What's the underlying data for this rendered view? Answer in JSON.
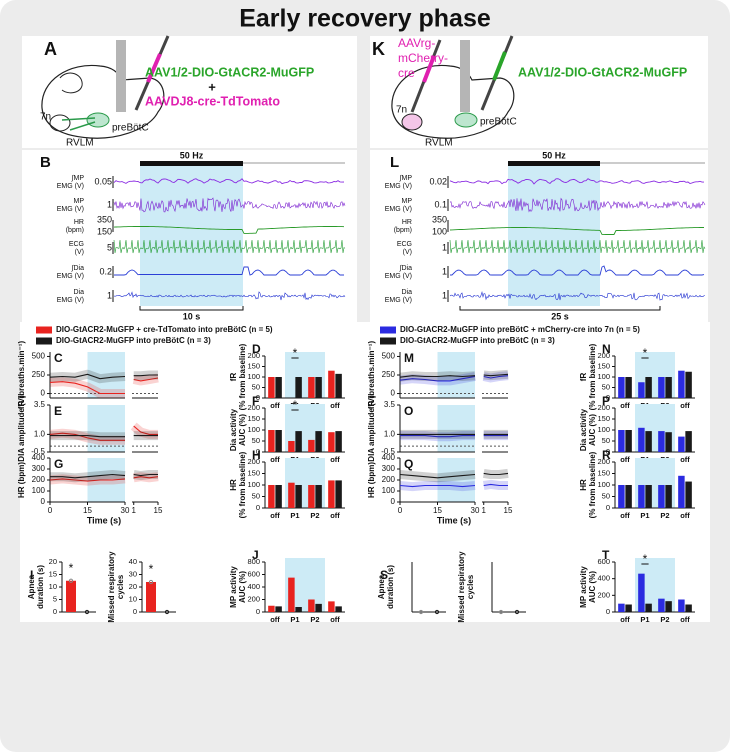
{
  "title": "Early recovery phase",
  "schematics": [
    {
      "letter": "A",
      "virus": "AAV1/2-DIO-GtACR2-MuGFP",
      "plus": "+",
      "virus2": "AAVDJ8-cre-TdTomato",
      "nuclei": [
        "7n",
        "preBötC",
        "RVLM"
      ]
    },
    {
      "letter": "K",
      "retro": [
        "AAVrg-",
        "mCherry-",
        "cre"
      ],
      "virus": "AAV1/2-DIO-GtACR2-MuGFP",
      "nuclei": [
        "7n",
        "preBötC",
        "RVLM"
      ]
    }
  ],
  "recordings": [
    {
      "letter": "B",
      "stim": "50 Hz",
      "scale": "10 s",
      "channels": [
        {
          "label": [
            "∫MP",
            "EMG (V)"
          ],
          "scale": [
            "0.05"
          ]
        },
        {
          "label": [
            "MP",
            "EMG (V)"
          ],
          "scale": [
            "1"
          ]
        },
        {
          "label": [
            "HR",
            "(bpm)"
          ],
          "scale": [
            "350",
            "150"
          ]
        },
        {
          "label": [
            "ECG",
            "(V)"
          ],
          "scale": [
            "5"
          ]
        },
        {
          "label": [
            "∫Dia",
            "EMG (V)"
          ],
          "scale": [
            "0.2"
          ]
        },
        {
          "label": [
            "Dia",
            "EMG (V)"
          ],
          "scale": [
            "1"
          ]
        }
      ]
    },
    {
      "letter": "L",
      "stim": "50 Hz",
      "scale": "25 s",
      "channels": [
        {
          "label": [
            "∫MP",
            "EMG (V)"
          ],
          "scale": [
            "0.02"
          ]
        },
        {
          "label": [
            "MP",
            "EMG (V)"
          ],
          "scale": [
            "0.1"
          ]
        },
        {
          "label": [
            "HR",
            "(bpm)"
          ],
          "scale": [
            "350",
            "100"
          ]
        },
        {
          "label": [
            "ECG",
            "(V)"
          ],
          "scale": [
            "1"
          ]
        },
        {
          "label": [
            "∫Dia",
            "EMG (V)"
          ],
          "scale": [
            "1"
          ]
        },
        {
          "label": [
            "Dia",
            "EMG (V)"
          ],
          "scale": [
            "1"
          ]
        }
      ]
    }
  ],
  "legends": [
    [
      {
        "color": "#e8231f",
        "text": "DIO-GtACR2-MuGFP + cre-TdTomato into preBötC (n = 5)"
      },
      {
        "color": "#1a1a1a",
        "text": "DIO-GtACR2-MuGFP into preBötC  (n = 3)"
      }
    ],
    [
      {
        "color": "#2b2be0",
        "text": "DIO-GtACR2-MuGFP into preBötC + mCherry-cre into 7n (n = 5)"
      },
      {
        "color": "#1a1a1a",
        "text": "DIO-GtACR2-MuGFP into preBötC (n = 3)"
      }
    ]
  ],
  "line_panels": [
    {
      "letter": "C",
      "ylabel": "fR (breaths.min⁻¹)",
      "ylim": [
        -60,
        560
      ],
      "yticks": [
        0,
        250,
        500
      ],
      "xlim": [
        0,
        30
      ],
      "post_xlim": [
        0,
        15
      ],
      "stim": [
        15,
        30
      ],
      "x": [
        0,
        5,
        10,
        15,
        20,
        25,
        30
      ],
      "post_x": [
        1,
        5,
        10,
        15
      ],
      "series": [
        {
          "color": "#e8231f",
          "values": [
            150,
            160,
            140,
            90,
            0,
            0,
            0
          ],
          "post_values": [
            190,
            170,
            190,
            210
          ]
        },
        {
          "color": "#1a1a1a",
          "values": [
            220,
            230,
            220,
            260,
            200,
            220,
            230
          ],
          "post_values": [
            240,
            240,
            250,
            250
          ]
        }
      ]
    },
    {
      "letter": "E",
      "ylabel": "DIA amplitude (V)",
      "ylim": [
        -0.5,
        3.5
      ],
      "yticks": [
        -0.5,
        {
          "value": 1,
          "label": "1.0"
        },
        3.5
      ],
      "xlim": [
        0,
        30
      ],
      "post_xlim": [
        0,
        15
      ],
      "stim": [
        15,
        30
      ],
      "x": [
        0,
        5,
        10,
        15,
        20,
        25,
        30
      ],
      "post_x": [
        1,
        5,
        10,
        15
      ],
      "series": [
        {
          "color": "#e8231f",
          "values": [
            1.0,
            1.1,
            1.0,
            0.7,
            0.5,
            0.5,
            0.5
          ],
          "post_values": [
            1.7,
            1.2,
            1.0,
            1.0
          ]
        },
        {
          "color": "#1a1a1a",
          "values": [
            0.9,
            0.9,
            0.9,
            0.9,
            0.8,
            0.8,
            0.8
          ],
          "post_values": [
            0.9,
            0.9,
            0.9,
            0.9
          ]
        }
      ]
    },
    {
      "letter": "G",
      "ylabel": "HR (bpm)",
      "ylim": [
        0,
        400
      ],
      "yticks": [
        0,
        100,
        200,
        300,
        400
      ],
      "xlim": [
        0,
        30
      ],
      "post_xlim": [
        0,
        15
      ],
      "xticks": [
        0,
        15,
        30
      ],
      "post_xticks": [
        1,
        15
      ],
      "xlabel": "Time (s)",
      "stim": [
        15,
        30
      ],
      "x": [
        0,
        5,
        10,
        15,
        20,
        25,
        30
      ],
      "post_x": [
        1,
        5,
        10,
        15
      ],
      "series": [
        {
          "color": "#e8231f",
          "values": [
            200,
            210,
            200,
            190,
            200,
            200,
            210
          ],
          "post_values": [
            220,
            230,
            220,
            230
          ]
        },
        {
          "color": "#1a1a1a",
          "values": [
            230,
            230,
            220,
            230,
            240,
            250,
            240
          ],
          "post_values": [
            250,
            240,
            250,
            250
          ]
        }
      ]
    },
    {
      "letter": "M",
      "ylabel": "fR (breaths.min⁻¹)",
      "ylim": [
        -60,
        560
      ],
      "yticks": [
        0,
        250,
        500
      ],
      "xlim": [
        0,
        30
      ],
      "post_xlim": [
        0,
        15
      ],
      "stim": [
        15,
        30
      ],
      "x": [
        0,
        5,
        10,
        15,
        20,
        25,
        30
      ],
      "post_x": [
        1,
        5,
        10,
        15
      ],
      "series": [
        {
          "color": "#2b2be0",
          "values": [
            180,
            200,
            190,
            170,
            170,
            200,
            230
          ],
          "post_values": [
            230,
            210,
            230,
            240
          ]
        },
        {
          "color": "#1a1a1a",
          "values": [
            220,
            240,
            230,
            230,
            240,
            230,
            240
          ],
          "post_values": [
            250,
            240,
            250,
            260
          ]
        }
      ]
    },
    {
      "letter": "O",
      "ylabel": "DIA amplitude (V)",
      "ylim": [
        -0.5,
        3.5
      ],
      "yticks": [
        -0.5,
        {
          "value": 1,
          "label": "1.0"
        },
        3.5
      ],
      "xlim": [
        0,
        30
      ],
      "post_xlim": [
        0,
        15
      ],
      "stim": [
        15,
        30
      ],
      "x": [
        0,
        5,
        10,
        15,
        20,
        25,
        30
      ],
      "post_x": [
        1,
        5,
        10,
        15
      ],
      "series": [
        {
          "color": "#2b2be0",
          "values": [
            0.9,
            0.9,
            0.9,
            0.8,
            0.8,
            0.9,
            0.9
          ],
          "post_values": [
            0.9,
            0.9,
            0.9,
            0.9
          ]
        },
        {
          "color": "#1a1a1a",
          "values": [
            1.0,
            1.0,
            1.0,
            1.0,
            1.0,
            1.0,
            1.0
          ],
          "post_values": [
            1.0,
            1.0,
            1.0,
            1.0
          ]
        }
      ]
    },
    {
      "letter": "Q",
      "ylabel": "HR (bpm)",
      "ylim": [
        0,
        400
      ],
      "yticks": [
        0,
        100,
        200,
        300,
        400
      ],
      "xlim": [
        0,
        30
      ],
      "post_xlim": [
        0,
        15
      ],
      "xticks": [
        0,
        15,
        30
      ],
      "post_xticks": [
        1,
        15
      ],
      "xlabel": "Time (s)",
      "stim": [
        15,
        30
      ],
      "x": [
        0,
        5,
        10,
        15,
        20,
        25,
        30
      ],
      "post_x": [
        1,
        5,
        10,
        15
      ],
      "series": [
        {
          "color": "#2b2be0",
          "values": [
            150,
            140,
            150,
            150,
            150,
            140,
            150
          ],
          "post_values": [
            150,
            160,
            150,
            150
          ]
        },
        {
          "color": "#1a1a1a",
          "values": [
            250,
            240,
            230,
            220,
            230,
            240,
            250
          ],
          "post_values": [
            260,
            250,
            250,
            260
          ]
        }
      ]
    }
  ],
  "bar_panels": [
    {
      "letter": "D",
      "ylabel": [
        "fR",
        "(% from baseline)"
      ],
      "ylim": [
        0,
        200
      ],
      "yticks": [
        0,
        50,
        100,
        150,
        200
      ],
      "categories": [
        "off",
        "P1",
        "P2",
        "off"
      ],
      "star": "*",
      "series": [
        {
          "color": "#e8231f",
          "values": [
            100,
            0,
            100,
            130
          ]
        },
        {
          "color": "#1a1a1a",
          "values": [
            100,
            100,
            100,
            115
          ]
        }
      ]
    },
    {
      "letter": "F",
      "ylabel": [
        "Dia activity",
        "AUC (%)"
      ],
      "ylim": [
        0,
        200
      ],
      "yticks": [
        0,
        50,
        100,
        150,
        200
      ],
      "categories": [
        "off",
        "P1",
        "P2",
        "off"
      ],
      "star": "*",
      "series": [
        {
          "color": "#e8231f",
          "values": [
            100,
            50,
            55,
            90
          ]
        },
        {
          "color": "#1a1a1a",
          "values": [
            100,
            95,
            95,
            95
          ]
        }
      ]
    },
    {
      "letter": "H",
      "ylabel": [
        "HR",
        "(% from baseline)"
      ],
      "ylim": [
        0,
        200
      ],
      "yticks": [
        0,
        50,
        100,
        150,
        200
      ],
      "categories": [
        "off",
        "P1",
        "P2",
        "off"
      ],
      "series": [
        {
          "color": "#e8231f",
          "values": [
            100,
            110,
            100,
            120
          ]
        },
        {
          "color": "#1a1a1a",
          "values": [
            100,
            100,
            100,
            120
          ]
        }
      ]
    },
    {
      "letter": "J",
      "ylabel": [
        "MP activity",
        "AUC (%)"
      ],
      "ylim": [
        0,
        800
      ],
      "yticks": [
        0,
        200,
        400,
        600,
        800
      ],
      "categories": [
        "off",
        "P1",
        "P2",
        "off"
      ],
      "series": [
        {
          "color": "#e8231f",
          "values": [
            100,
            550,
            200,
            170
          ]
        },
        {
          "color": "#1a1a1a",
          "values": [
            90,
            80,
            130,
            90
          ]
        }
      ]
    },
    {
      "letter": "N",
      "ylabel": [
        "fR",
        "(% from baseline)"
      ],
      "ylim": [
        0,
        200
      ],
      "yticks": [
        0,
        50,
        100,
        150,
        200
      ],
      "categories": [
        "off",
        "P1",
        "P2",
        "off"
      ],
      "star": "*",
      "series": [
        {
          "color": "#2b2be0",
          "values": [
            100,
            75,
            100,
            130
          ]
        },
        {
          "color": "#1a1a1a",
          "values": [
            100,
            100,
            100,
            125
          ]
        }
      ]
    },
    {
      "letter": "P",
      "ylabel": [
        "Dia activity",
        "AUC (%)"
      ],
      "ylim": [
        0,
        200
      ],
      "yticks": [
        0,
        50,
        100,
        150,
        200
      ],
      "categories": [
        "off",
        "P1",
        "P2",
        "off"
      ],
      "series": [
        {
          "color": "#2b2be0",
          "values": [
            100,
            110,
            95,
            70
          ]
        },
        {
          "color": "#1a1a1a",
          "values": [
            100,
            95,
            90,
            95
          ]
        }
      ]
    },
    {
      "letter": "R",
      "ylabel": [
        "HR",
        "(% from baseline)"
      ],
      "ylim": [
        0,
        200
      ],
      "yticks": [
        0,
        50,
        100,
        150,
        200
      ],
      "categories": [
        "off",
        "P1",
        "P2",
        "off"
      ],
      "series": [
        {
          "color": "#2b2be0",
          "values": [
            100,
            100,
            100,
            140
          ]
        },
        {
          "color": "#1a1a1a",
          "values": [
            100,
            100,
            100,
            115
          ]
        }
      ]
    },
    {
      "letter": "T",
      "ylabel": [
        "MP activity",
        "AUC (%)"
      ],
      "ylim": [
        0,
        600
      ],
      "yticks": [
        0,
        200,
        400,
        600
      ],
      "categories": [
        "off",
        "P1",
        "P2",
        "off"
      ],
      "star": "*",
      "series": [
        {
          "color": "#2b2be0",
          "values": [
            100,
            460,
            160,
            150
          ]
        },
        {
          "color": "#1a1a1a",
          "values": [
            90,
            100,
            130,
            90
          ]
        }
      ]
    }
  ],
  "event_panels": [
    {
      "letter": "I",
      "plots": [
        {
          "ylabel": [
            "Apnea",
            "duration (s)"
          ],
          "ylim": [
            0,
            20
          ],
          "yticks": [
            0,
            5,
            10,
            15,
            20
          ],
          "values": [
            12.5,
            0
          ],
          "colors": [
            "#e8231f",
            "#1a1a1a"
          ],
          "star": "*"
        },
        {
          "ylabel": [
            "Missed respiratory",
            "cycles"
          ],
          "ylim": [
            0,
            40
          ],
          "yticks": [
            0,
            10,
            20,
            30,
            40
          ],
          "values": [
            24,
            0
          ],
          "colors": [
            "#e8231f",
            "#1a1a1a"
          ],
          "star": "*"
        }
      ]
    },
    {
      "letter": "S",
      "plots": [
        {
          "ylabel": [
            "Apnea",
            "duration (s)"
          ],
          "ylim": [
            0,
            20
          ],
          "yticks": [],
          "values": [
            0,
            0
          ],
          "colors": [
            "#2b2be0",
            "#1a1a1a"
          ]
        },
        {
          "ylabel": [
            "Missed respiratory",
            "cycles"
          ],
          "ylim": [
            0,
            40
          ],
          "yticks": [],
          "values": [
            0,
            0
          ],
          "colors": [
            "#2b2be0",
            "#1a1a1a"
          ]
        }
      ]
    }
  ]
}
